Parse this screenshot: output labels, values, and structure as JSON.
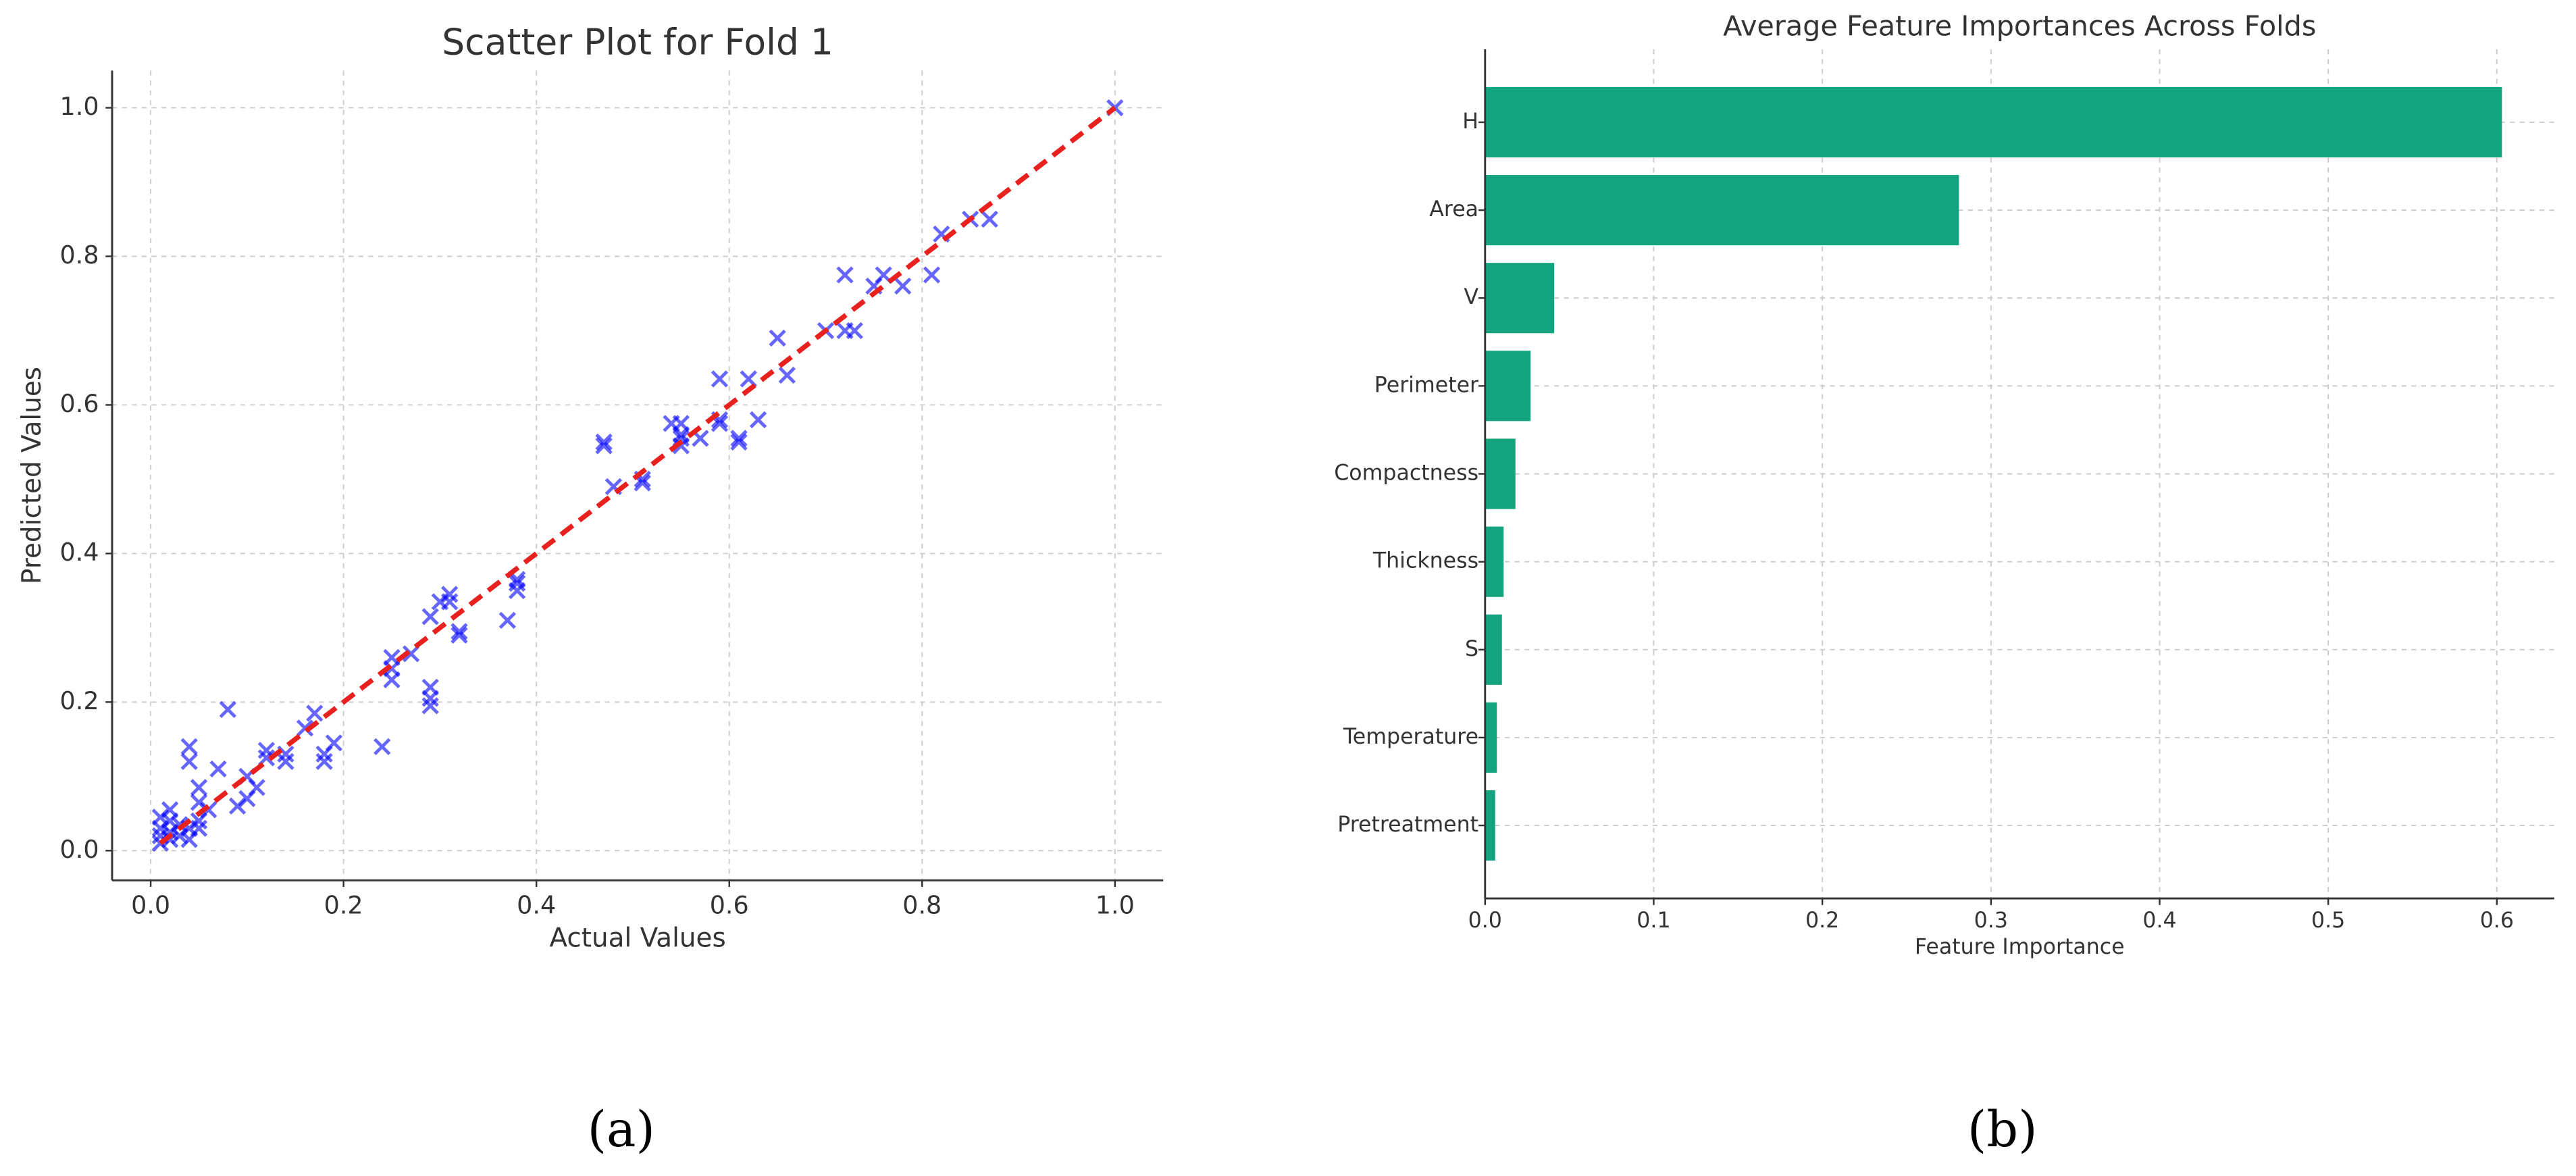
{
  "chart_data": [
    {
      "type": "scatter",
      "title": "Scatter Plot for Fold 1",
      "x_label": "Actual Values",
      "y_label": "Predicted Values",
      "caption": "(a)",
      "color": "#0000ff",
      "alpha": 0.6,
      "marker": "x",
      "grid": true,
      "xlim": [
        -0.04,
        1.05
      ],
      "ylim": [
        -0.04,
        1.05
      ],
      "xticks": [
        {
          "value": 0,
          "label": "0.0"
        },
        0.2,
        0.4,
        0.6,
        0.8,
        {
          "value": 1,
          "label": "1.0"
        }
      ],
      "yticks": [
        {
          "value": 0,
          "label": "0.0"
        },
        0.2,
        0.4,
        0.6,
        0.8,
        {
          "value": 1,
          "label": "1.0"
        }
      ],
      "x": [
        0.01,
        0.01,
        0.01,
        0.01,
        0.02,
        0.02,
        0.02,
        0.02,
        0.03,
        0.03,
        0.04,
        0.04,
        0.04,
        0.04,
        0.05,
        0.05,
        0.05,
        0.05,
        0.06,
        0.07,
        0.08,
        0.09,
        0.1,
        0.1,
        0.11,
        0.12,
        0.12,
        0.14,
        0.14,
        0.16,
        0.17,
        0.18,
        0.18,
        0.19,
        0.24,
        0.25,
        0.25,
        0.25,
        0.27,
        0.29,
        0.29,
        0.29,
        0.29,
        0.3,
        0.31,
        0.31,
        0.32,
        0.32,
        0.37,
        0.38,
        0.38,
        0.38,
        0.47,
        0.47,
        0.48,
        0.51,
        0.51,
        0.54,
        0.55,
        0.55,
        0.55,
        0.55,
        0.57,
        0.59,
        0.59,
        0.59,
        0.61,
        0.61,
        0.62,
        0.63,
        0.65,
        0.66,
        0.7,
        0.72,
        0.72,
        0.73,
        0.75,
        0.76,
        0.78,
        0.81,
        0.82,
        0.85,
        0.87,
        1.0
      ],
      "values": [
        0.02,
        0.045,
        0.03,
        0.01,
        0.015,
        0.04,
        0.025,
        0.055,
        0.02,
        0.035,
        0.14,
        0.12,
        0.015,
        0.03,
        0.085,
        0.065,
        0.04,
        0.03,
        0.055,
        0.11,
        0.19,
        0.06,
        0.1,
        0.07,
        0.085,
        0.135,
        0.125,
        0.13,
        0.12,
        0.165,
        0.185,
        0.13,
        0.12,
        0.145,
        0.14,
        0.26,
        0.245,
        0.23,
        0.265,
        0.315,
        0.22,
        0.205,
        0.195,
        0.335,
        0.345,
        0.335,
        0.295,
        0.29,
        0.31,
        0.365,
        0.36,
        0.35,
        0.545,
        0.55,
        0.49,
        0.5,
        0.495,
        0.575,
        0.56,
        0.555,
        0.545,
        0.575,
        0.555,
        0.635,
        0.575,
        0.58,
        0.555,
        0.55,
        0.635,
        0.58,
        0.69,
        0.64,
        0.7,
        0.775,
        0.7,
        0.7,
        0.76,
        0.775,
        0.76,
        0.775,
        0.83,
        0.85,
        0.85,
        1.0
      ],
      "reference_line": {
        "x": [
          0.01,
          1.0
        ],
        "y": [
          0.01,
          1.0
        ],
        "color": "#e8201e",
        "dashed": true
      }
    },
    {
      "type": "bar",
      "orientation": "horizontal",
      "title": "Average Feature Importances Across Folds",
      "x_label": "Feature Importance",
      "caption": "(b)",
      "color": "#14a37f",
      "grid": true,
      "categories": [
        "H",
        "Area",
        "V",
        "Perimeter",
        "Compactness",
        "Thickness",
        "S",
        "Temperature",
        "Pretreatment"
      ],
      "values": [
        0.603,
        0.281,
        0.041,
        0.027,
        0.018,
        0.011,
        0.01,
        0.007,
        0.006
      ],
      "xlim": [
        0,
        0.634
      ],
      "xticks": [
        {
          "value": 0,
          "label": "0.0"
        },
        0.1,
        0.2,
        0.3,
        0.4,
        0.5,
        0.6
      ]
    }
  ]
}
